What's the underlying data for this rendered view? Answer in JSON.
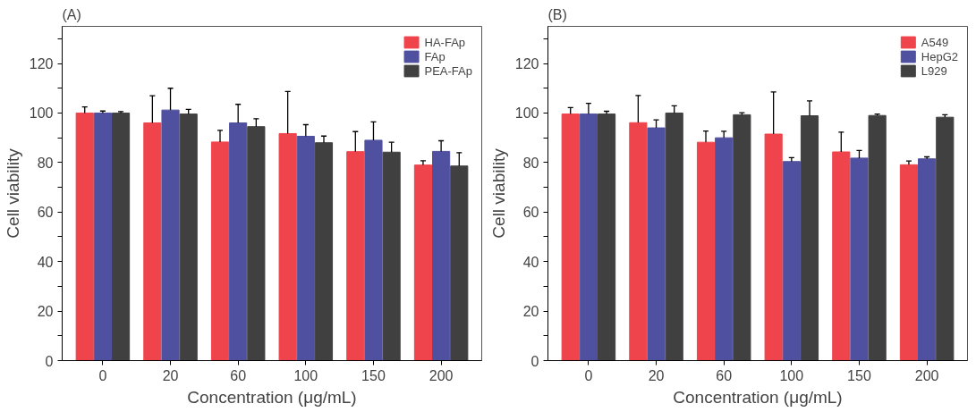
{
  "chart_data": [
    {
      "type": "bar",
      "title": "(A)",
      "xlabel": "Concentration (μg/mL)",
      "ylabel": "Cell viability",
      "categories": [
        "0",
        "20",
        "60",
        "100",
        "150",
        "200"
      ],
      "series": [
        {
          "name": "HA-FAp",
          "color": "#f0444c",
          "values": [
            100,
            96,
            88.3,
            91.7,
            84.4,
            79
          ],
          "errors": [
            [
              100,
              102.5
            ],
            [
              96,
              107
            ],
            [
              88.3,
              93
            ],
            [
              91.7,
              108.7
            ],
            [
              84.4,
              92.5
            ],
            [
              79,
              80.7
            ]
          ]
        },
        {
          "name": "FAp",
          "color": "#5050a0",
          "values": [
            100,
            101.2,
            96,
            90.6,
            89,
            84.5
          ],
          "errors": [
            [
              100,
              100.8
            ],
            [
              101.2,
              110
            ],
            [
              96,
              103.5
            ],
            [
              90.6,
              95.3
            ],
            [
              89,
              96.4
            ],
            [
              84.5,
              88.8
            ]
          ]
        },
        {
          "name": "PEA-FAp",
          "color": "#404040",
          "values": [
            100,
            99.6,
            94.5,
            88,
            84.2,
            78.6
          ],
          "errors": [
            [
              100,
              100.6
            ],
            [
              99.6,
              101.5
            ],
            [
              94.5,
              97.7
            ],
            [
              88,
              90.7
            ],
            [
              84.2,
              88.2
            ],
            [
              78.6,
              84
            ]
          ]
        }
      ],
      "ylim": [
        0,
        135
      ],
      "yticks": [
        0,
        {
          "value": 10,
          "label": null
        },
        20,
        {
          "value": 30,
          "label": null
        },
        40,
        {
          "value": 50,
          "label": null
        },
        60,
        {
          "value": 70,
          "label": null
        },
        80,
        {
          "value": 90,
          "label": null
        },
        100,
        {
          "value": 110,
          "label": null
        },
        120,
        {
          "value": 130,
          "label": null
        }
      ],
      "grid": false,
      "legend": "top right"
    },
    {
      "type": "bar",
      "title": "(B)",
      "xlabel": "Concentration (μg/mL)",
      "ylabel": "Cell viability",
      "categories": [
        "0",
        "20",
        "60",
        "100",
        "150",
        "200"
      ],
      "series": [
        {
          "name": "A549",
          "color": "#f0444c",
          "values": [
            99.6,
            96.1,
            88.2,
            91.5,
            84.3,
            79.1
          ],
          "errors": [
            [
              99.6,
              102.2
            ],
            [
              96.1,
              107.1
            ],
            [
              88.2,
              92.7
            ],
            [
              91.5,
              108.5
            ],
            [
              84.3,
              92.3
            ],
            [
              79.1,
              80.6
            ]
          ]
        },
        {
          "name": "HepG2",
          "color": "#5050a0",
          "values": [
            99.6,
            94,
            90,
            80.4,
            81.8,
            81.5
          ],
          "errors": [
            [
              99.6,
              103.9
            ],
            [
              94,
              97.2
            ],
            [
              90,
              92.6
            ],
            [
              80.4,
              82
            ],
            [
              81.8,
              84.9
            ],
            [
              81.5,
              82.3
            ]
          ]
        },
        {
          "name": "L929",
          "color": "#404040",
          "values": [
            99.6,
            100,
            99.3,
            98.9,
            99,
            98.3
          ],
          "errors": [
            [
              99.6,
              100.7
            ],
            [
              100,
              102.9
            ],
            [
              99.3,
              100.1
            ],
            [
              98.9,
              104.9
            ],
            [
              99,
              99.6
            ],
            [
              98.3,
              99.3
            ]
          ]
        }
      ],
      "ylim": [
        0,
        135
      ],
      "yticks": [
        0,
        {
          "value": 10,
          "label": null
        },
        20,
        {
          "value": 30,
          "label": null
        },
        40,
        {
          "value": 50,
          "label": null
        },
        60,
        {
          "value": 70,
          "label": null
        },
        80,
        {
          "value": 90,
          "label": null
        },
        100,
        {
          "value": 110,
          "label": null
        },
        120,
        {
          "value": 130,
          "label": null
        }
      ],
      "grid": false,
      "legend": "top right"
    }
  ]
}
